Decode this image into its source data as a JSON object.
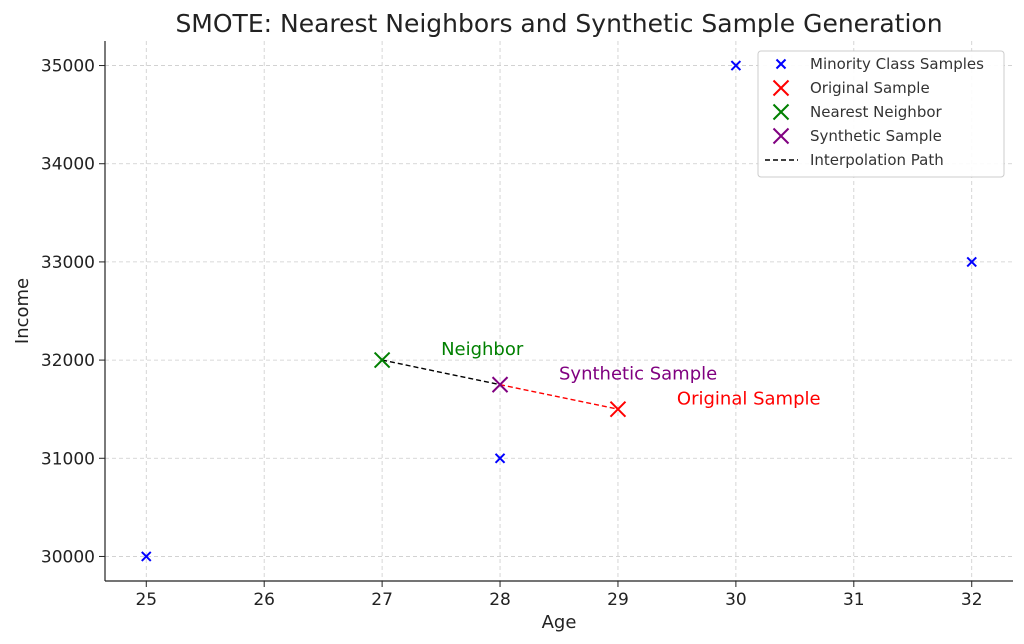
{
  "chart_data": {
    "type": "scatter",
    "title": "SMOTE: Nearest Neighbors and Synthetic Sample Generation",
    "xlabel": "Age",
    "ylabel": "Income",
    "xlim": [
      24.65,
      32.35
    ],
    "ylim": [
      29750,
      35250
    ],
    "xticks": [
      25,
      26,
      27,
      28,
      29,
      30,
      31,
      32
    ],
    "yticks": [
      30000,
      31000,
      32000,
      33000,
      34000,
      35000
    ],
    "grid": true,
    "legend_position": "top-right",
    "series": [
      {
        "name": "Minority Class Samples",
        "marker": "x-small",
        "color": "#0000ff",
        "points": [
          [
            25,
            30000
          ],
          [
            28,
            31000
          ],
          [
            30,
            35000
          ],
          [
            32,
            33000
          ]
        ]
      },
      {
        "name": "Original Sample",
        "marker": "x-large",
        "color": "#ff0000",
        "points": [
          [
            29,
            31500
          ]
        ]
      },
      {
        "name": "Nearest Neighbor",
        "marker": "x-large",
        "color": "#008000",
        "points": [
          [
            27,
            32000
          ]
        ]
      },
      {
        "name": "Synthetic Sample",
        "marker": "x-large",
        "color": "#800080",
        "points": [
          [
            28,
            31750
          ]
        ]
      },
      {
        "name": "Interpolation Path",
        "marker": "dashed-line",
        "color": "#000000",
        "points": [
          [
            27,
            32000
          ],
          [
            28,
            31750
          ]
        ]
      }
    ],
    "extra_lines": [
      {
        "color": "#ff0000",
        "style": "dashed",
        "points": [
          [
            28,
            31750
          ],
          [
            29,
            31500
          ]
        ]
      }
    ],
    "annotations": [
      {
        "text": "Neighbor",
        "x": 27.5,
        "y": 32050,
        "color": "#008000"
      },
      {
        "text": "Synthetic Sample",
        "x": 28.5,
        "y": 31800,
        "color": "#800080"
      },
      {
        "text": "Original Sample",
        "x": 29.5,
        "y": 31550,
        "color": "#ff0000"
      }
    ]
  }
}
